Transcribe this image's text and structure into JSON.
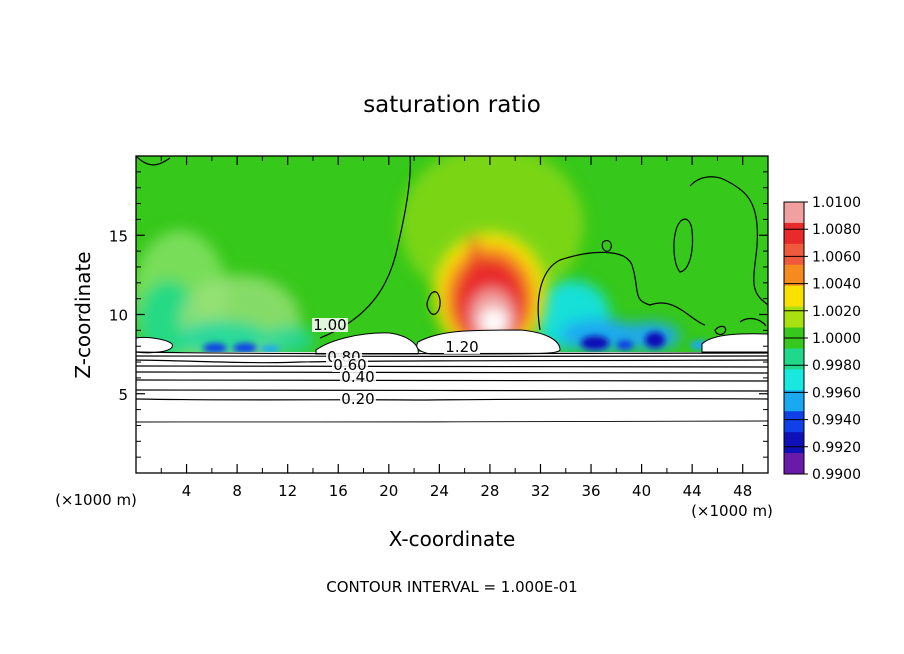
{
  "chart_data": {
    "type": "heatmap",
    "title": "saturation ratio",
    "xlabel": "X-coordinate",
    "ylabel": "Z-coordinate",
    "x_unit_left": "(×1000 m)",
    "x_unit_right": "(×1000 m)",
    "xlim": [
      0,
      50
    ],
    "ylim": [
      0,
      20
    ],
    "x_ticks": [
      4,
      8,
      12,
      16,
      20,
      24,
      28,
      32,
      36,
      40,
      44,
      48
    ],
    "y_ticks": [
      5,
      10,
      15
    ],
    "footer": "CONTOUR INTERVAL = 1.000E-01",
    "colorbar": {
      "range": [
        0.99,
        1.01
      ],
      "labels": [
        "1.0100",
        "1.0080",
        "1.0060",
        "1.0040",
        "1.0020",
        "1.0000",
        "0.9980",
        "0.9960",
        "0.9940",
        "0.9920",
        "0.9900"
      ],
      "colors": [
        "#f0a0a0",
        "#e82a2a",
        "#f05a3c",
        "#f58a1e",
        "#f8e000",
        "#a8e010",
        "#36c81a",
        "#20d88a",
        "#18e8e0",
        "#1aa8f0",
        "#1040e8",
        "#1010b8",
        "#6a1aa8"
      ]
    },
    "contour_labels": [
      "1.00",
      "1.20",
      "0.80",
      "0.60",
      "0.40",
      "0.20"
    ],
    "background_value": 1.0,
    "features": [
      {
        "name": "central updraft",
        "x": 28,
        "z_base": 9.2,
        "z_top": 14.8,
        "peak": 1.01
      },
      {
        "name": "left dry pool",
        "x": 8,
        "z_base": 7.6,
        "z_top": 13,
        "min": 0.997
      },
      {
        "name": "right dry pool",
        "x": 38,
        "z_base": 7.6,
        "z_top": 11,
        "min": 0.992
      }
    ]
  }
}
